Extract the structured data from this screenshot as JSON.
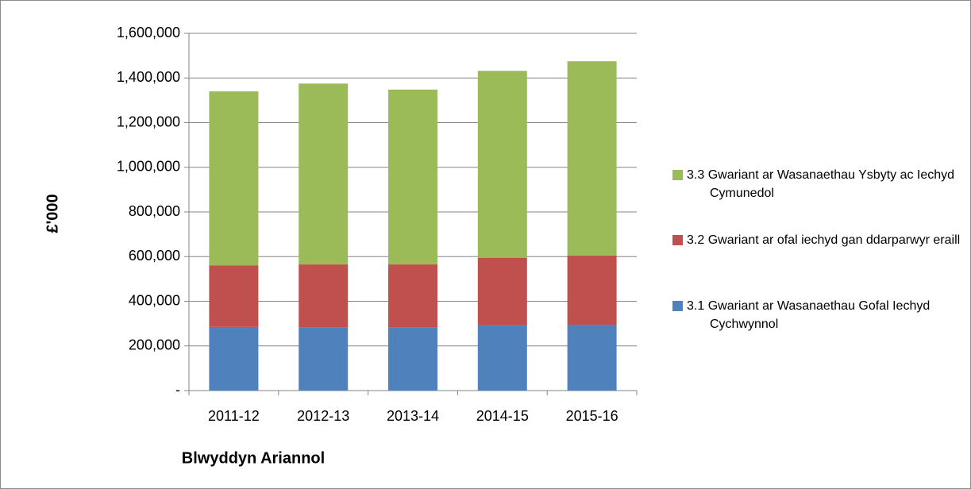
{
  "chart_data": {
    "type": "stacked_bar",
    "categories": [
      "2011-12",
      "2012-13",
      "2013-14",
      "2014-15",
      "2015-16"
    ],
    "series": [
      {
        "name": "3.1 Gwariant ar Wasanaethau Gofal Iechyd Cychwynnol",
        "color": "#4f81bd",
        "values": [
          285000,
          282000,
          282000,
          293000,
          295000
        ]
      },
      {
        "name": "3.2 Gwariant ar ofal iechyd gan ddarparwyr eraill",
        "color": "#c0504d",
        "values": [
          275000,
          283000,
          283000,
          302000,
          310000
        ]
      },
      {
        "name": "3.3 Gwariant ar Wasanaethau Ysbyty ac Iechyd Cymunedol",
        "color": "#9bbb59",
        "values": [
          780000,
          810000,
          783000,
          837000,
          870000
        ]
      }
    ],
    "xlabel": "Blwyddyn Ariannol",
    "ylabel": "£'000",
    "ylim": [
      0,
      1600000
    ],
    "yticks": [
      {
        "value": 0,
        "label": "-"
      },
      {
        "value": 200000,
        "label": "200,000"
      },
      {
        "value": 400000,
        "label": "400,000"
      },
      {
        "value": 600000,
        "label": "600,000"
      },
      {
        "value": 800000,
        "label": "800,000"
      },
      {
        "value": 1000000,
        "label": "1,000,000"
      },
      {
        "value": 1200000,
        "label": "1,200,000"
      },
      {
        "value": 1400000,
        "label": "1,400,000"
      },
      {
        "value": 1600000,
        "label": "1,600,000"
      }
    ],
    "grid": true,
    "legend": "right"
  }
}
